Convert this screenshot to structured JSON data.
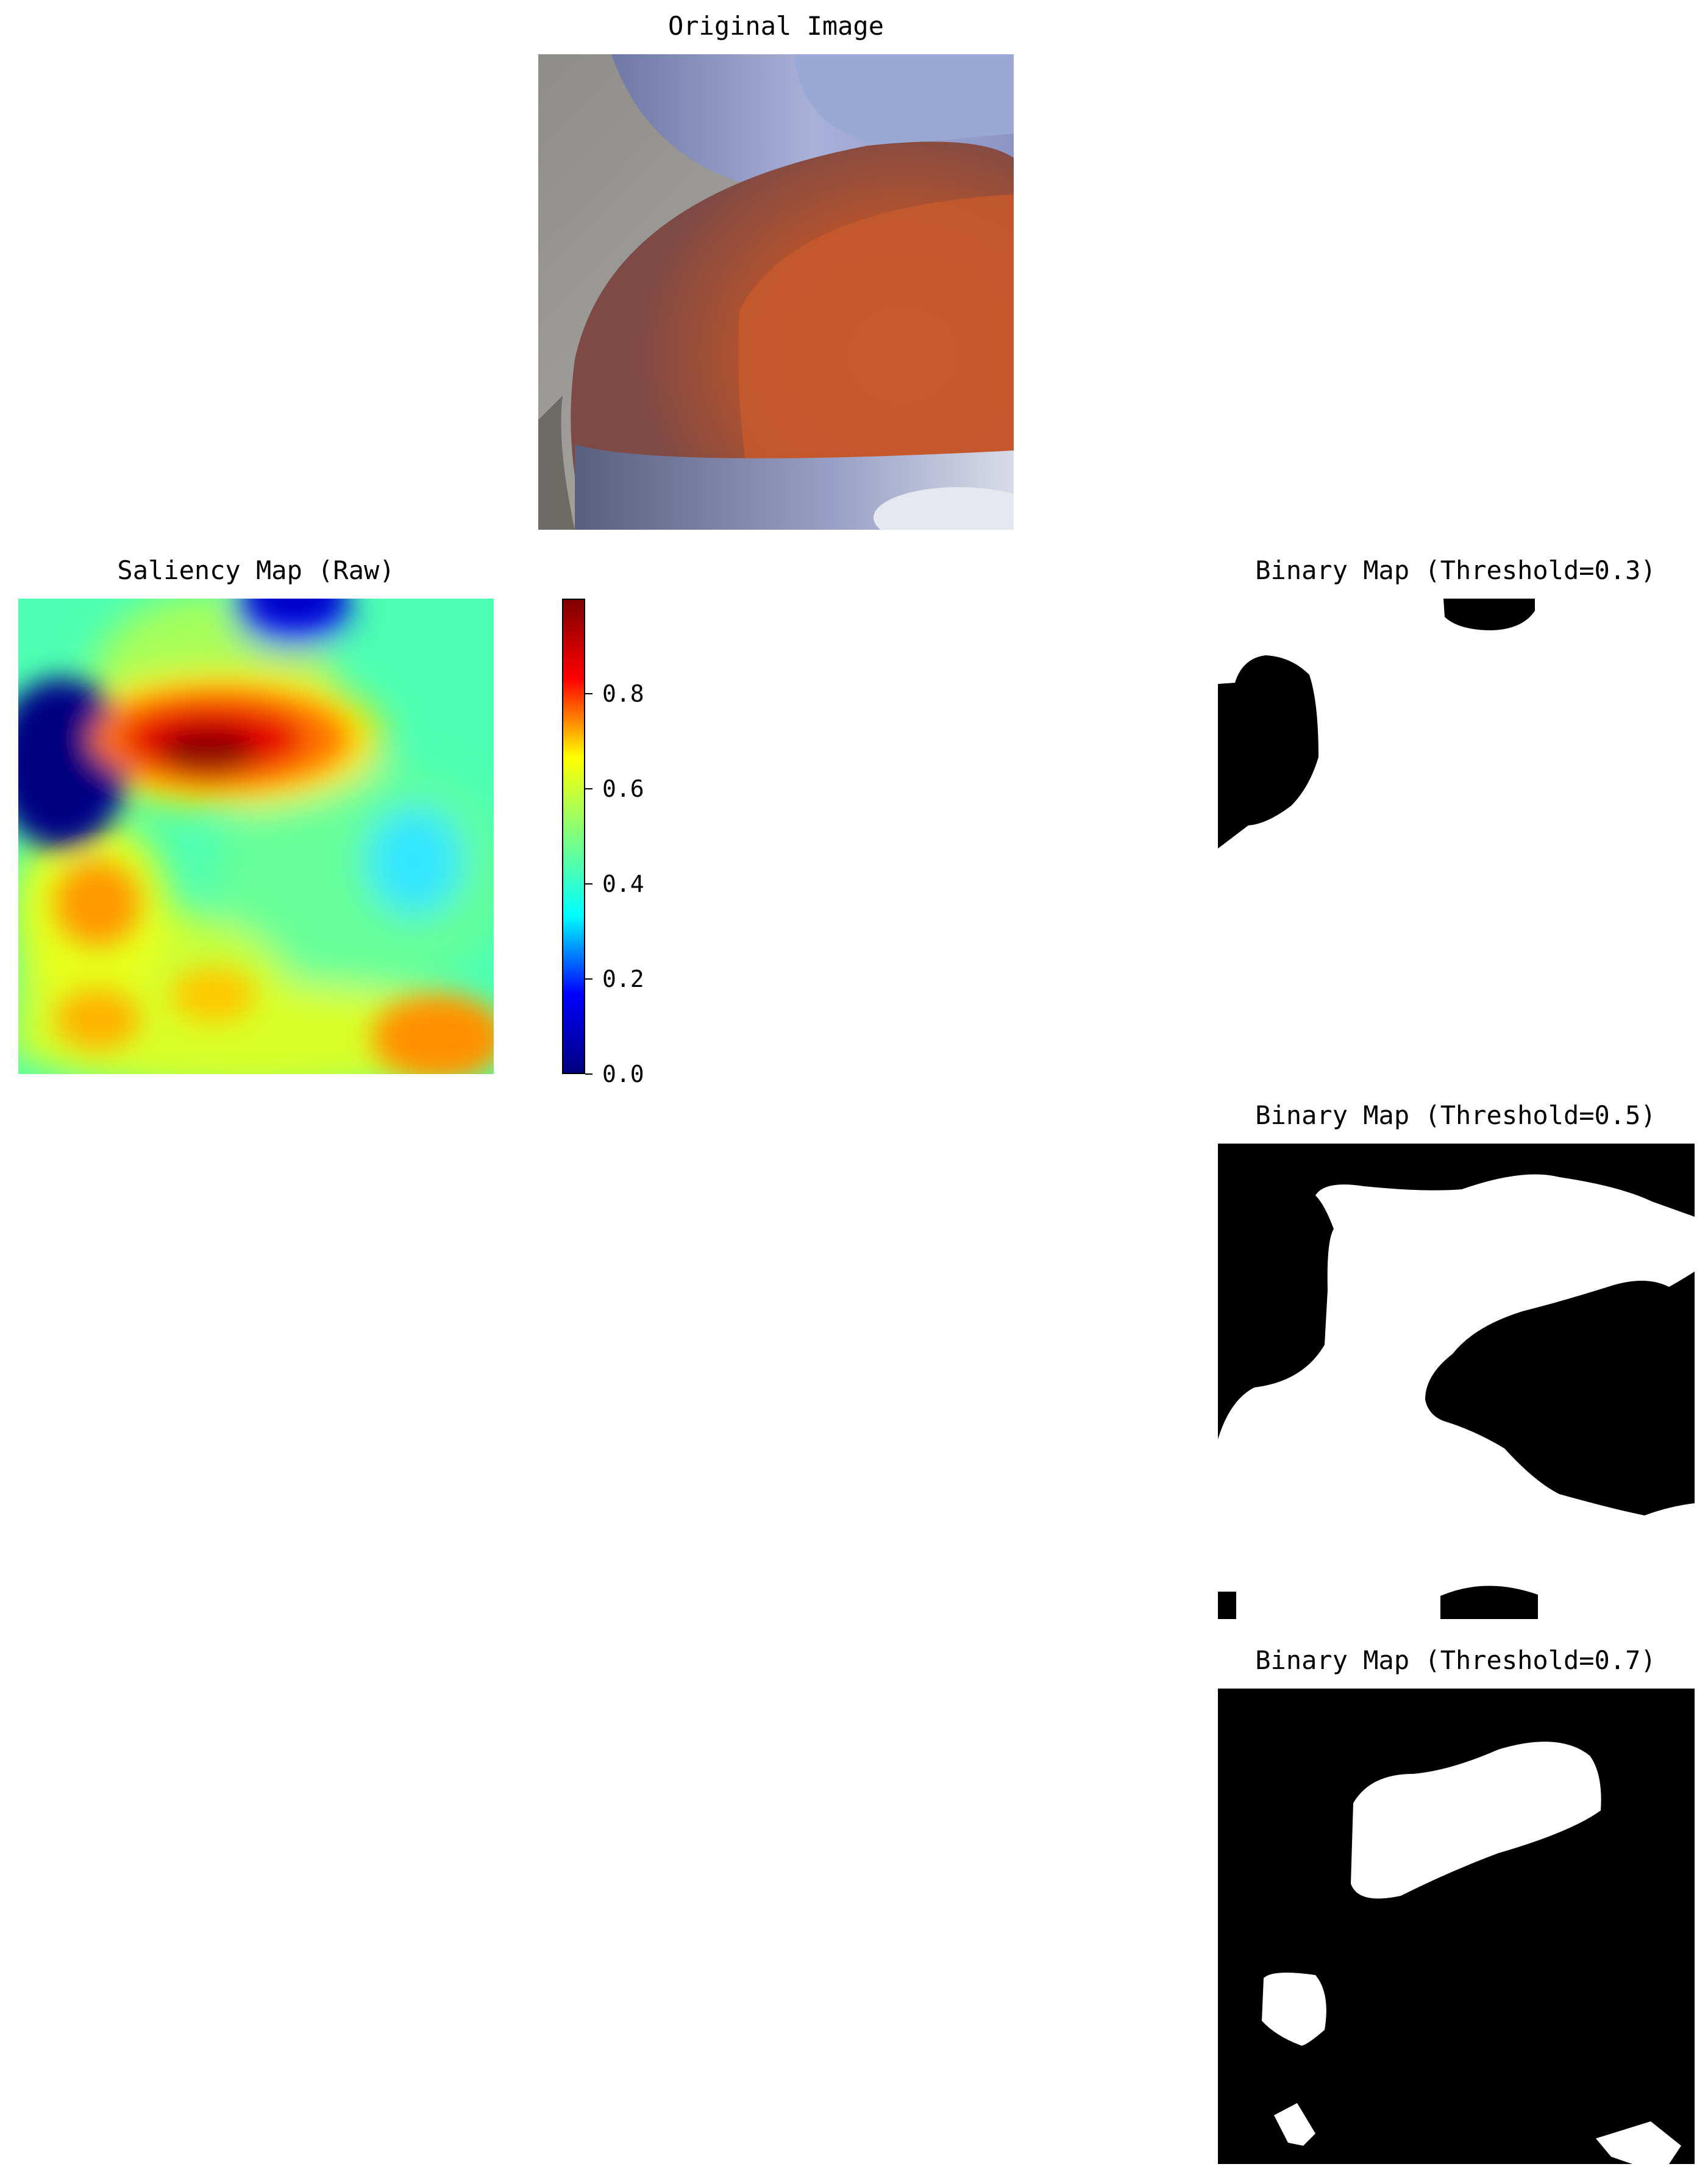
{
  "panels": {
    "original": {
      "title": "Original Image"
    },
    "saliency": {
      "title": "Saliency Map (Raw)",
      "colormap": "jet"
    },
    "binary_1": {
      "title": "Binary Map (Threshold=0.3)"
    },
    "binary_2": {
      "title": "Binary Map (Threshold=0.5)"
    },
    "binary_3": {
      "title": "Binary Map (Threshold=0.7)"
    }
  },
  "colorbar": {
    "ticks": [
      "0.0",
      "0.2",
      "0.4",
      "0.6",
      "0.8"
    ],
    "tick_values": [
      0.0,
      0.2,
      0.4,
      0.6,
      0.8
    ],
    "range": [
      0.0,
      1.0
    ],
    "colors": [
      "#00007f",
      "#0000ff",
      "#00ffff",
      "#7fff7f",
      "#ffff00",
      "#ff0000",
      "#7f0000"
    ]
  },
  "chart_data": [
    {
      "type": "heatmap",
      "title": "Saliency Map (Raw)",
      "zlim": [
        0.0,
        1.0
      ],
      "colormap": "jet",
      "axes": "off"
    },
    {
      "type": "heatmap",
      "title": "Binary Map (Threshold=0.3)",
      "threshold": 0.3,
      "axes": "off"
    },
    {
      "type": "heatmap",
      "title": "Binary Map (Threshold=0.5)",
      "threshold": 0.5,
      "axes": "off"
    },
    {
      "type": "heatmap",
      "title": "Binary Map (Threshold=0.7)",
      "threshold": 0.7,
      "axes": "off"
    }
  ]
}
